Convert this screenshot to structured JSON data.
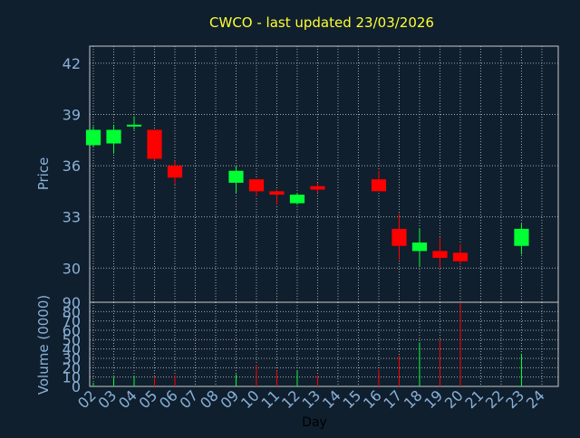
{
  "title": "CWCO - last updated 23/03/2026",
  "colors": {
    "background": "#0f1f2e",
    "title": "#ffff33",
    "axis_text": "#8ab0d6",
    "xlabel": "#000000",
    "frame": "#c8c8c8",
    "grid": "#c8c8c8",
    "up": "#00ff33",
    "down": "#ff0000"
  },
  "chart_data": [
    {
      "type": "candlestick",
      "ylabel": "Price",
      "ylim": [
        28,
        43
      ],
      "yticks": [
        30,
        33,
        36,
        39,
        42
      ],
      "grid": true,
      "candles": [
        {
          "day": "02",
          "open": 37.2,
          "close": 38.1,
          "high": 38.3,
          "low": 37.1
        },
        {
          "day": "03",
          "open": 37.3,
          "close": 38.1,
          "high": 38.4,
          "low": 36.7
        },
        {
          "day": "04",
          "open": 38.3,
          "close": 38.4,
          "high": 38.9,
          "low": 38.1
        },
        {
          "day": "05",
          "open": 38.1,
          "close": 36.4,
          "high": 38.1,
          "low": 36.3
        },
        {
          "day": "06",
          "open": 36.0,
          "close": 35.3,
          "high": 36.3,
          "low": 34.9
        },
        {
          "day": "09",
          "open": 35.0,
          "close": 35.7,
          "high": 36.0,
          "low": 34.4
        },
        {
          "day": "10",
          "open": 35.2,
          "close": 34.5,
          "high": 35.2,
          "low": 34.2
        },
        {
          "day": "11",
          "open": 34.5,
          "close": 34.3,
          "high": 34.6,
          "low": 33.7
        },
        {
          "day": "12",
          "open": 33.8,
          "close": 34.3,
          "high": 34.4,
          "low": 33.7
        },
        {
          "day": "13",
          "open": 34.8,
          "close": 34.6,
          "high": 35.0,
          "low": 34.4
        },
        {
          "day": "16",
          "open": 35.2,
          "close": 34.5,
          "high": 35.7,
          "low": 34.5
        },
        {
          "day": "17",
          "open": 32.3,
          "close": 31.3,
          "high": 33.2,
          "low": 30.5
        },
        {
          "day": "18",
          "open": 31.0,
          "close": 31.5,
          "high": 32.3,
          "low": 30.1
        },
        {
          "day": "19",
          "open": 31.0,
          "close": 30.6,
          "high": 31.8,
          "low": 30.0
        },
        {
          "day": "20",
          "open": 30.9,
          "close": 30.4,
          "high": 31.4,
          "low": 30.2
        },
        {
          "day": "23",
          "open": 31.3,
          "close": 32.3,
          "high": 32.6,
          "low": 30.8
        }
      ]
    },
    {
      "type": "bar",
      "ylabel": "Volume (0000)",
      "xlabel": "Day",
      "ylim": [
        0,
        90
      ],
      "yticks": [
        0,
        10,
        20,
        30,
        40,
        50,
        60,
        70,
        80,
        90
      ],
      "grid": true,
      "categories": [
        "02",
        "03",
        "04",
        "05",
        "06",
        "07",
        "08",
        "09",
        "10",
        "11",
        "12",
        "13",
        "14",
        "15",
        "16",
        "17",
        "18",
        "19",
        "20",
        "21",
        "22",
        "23",
        "24"
      ],
      "bars": [
        {
          "day": "02",
          "value": 4,
          "direction": "up"
        },
        {
          "day": "03",
          "value": 10,
          "direction": "up"
        },
        {
          "day": "04",
          "value": 11,
          "direction": "up"
        },
        {
          "day": "05",
          "value": 10,
          "direction": "down"
        },
        {
          "day": "06",
          "value": 12,
          "direction": "down"
        },
        {
          "day": "09",
          "value": 13,
          "direction": "up"
        },
        {
          "day": "10",
          "value": 23,
          "direction": "down"
        },
        {
          "day": "11",
          "value": 17,
          "direction": "down"
        },
        {
          "day": "12",
          "value": 17,
          "direction": "up"
        },
        {
          "day": "13",
          "value": 12,
          "direction": "down"
        },
        {
          "day": "16",
          "value": 18,
          "direction": "down"
        },
        {
          "day": "17",
          "value": 33,
          "direction": "down"
        },
        {
          "day": "18",
          "value": 47,
          "direction": "up"
        },
        {
          "day": "19",
          "value": 50,
          "direction": "down"
        },
        {
          "day": "20",
          "value": 90,
          "direction": "down"
        },
        {
          "day": "23",
          "value": 35,
          "direction": "up"
        }
      ]
    }
  ]
}
